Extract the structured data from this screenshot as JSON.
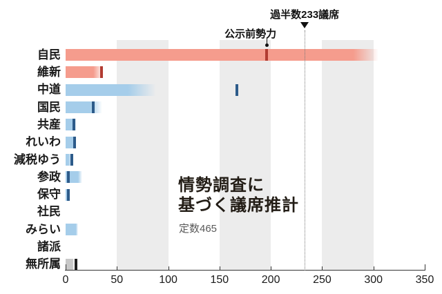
{
  "chart_data": {
    "type": "bar",
    "orientation": "horizontal",
    "title": "情勢調査に基づく議席推計",
    "title_lines": [
      "情勢調査に",
      "基づく議席推計"
    ],
    "subtitle": "定数465",
    "total_seats": 465,
    "xlim": [
      0,
      350
    ],
    "x_ticks": [
      0,
      50,
      100,
      150,
      200,
      250,
      300,
      350
    ],
    "shaded_bands": [
      [
        50,
        100
      ],
      [
        150,
        200
      ],
      [
        250,
        300
      ]
    ],
    "grid": "off",
    "majority": {
      "label": "過半数233議席",
      "seats": 233
    },
    "pre_strength": {
      "label": "公示前勢力",
      "party": "自民",
      "seats": 196
    },
    "colors": {
      "ruling_bar": "#f59c8d",
      "ruling_tick": "#b23c32",
      "opposition_bar": "#a5cdea",
      "opposition_tick": "#2d5b8a",
      "independent_bar": "#c8c8c8",
      "independent_tick": "#1f1f1f",
      "band": "#ececec"
    },
    "parties": [
      {
        "label": "自民",
        "projected": 280,
        "projected_max": 305,
        "pre_seats": 196,
        "bar_color": "#f59c8d",
        "tick_color": "#b23c32"
      },
      {
        "label": "維新",
        "projected": 27,
        "projected_max": 37,
        "pre_seats": 35,
        "bar_color": "#f59c8d",
        "tick_color": "#b23c32"
      },
      {
        "label": "中道",
        "projected": 61,
        "projected_max": 88,
        "pre_seats": 167,
        "bar_color": "#a5cdea",
        "tick_color": "#2d5b8a"
      },
      {
        "label": "国民",
        "projected": 24,
        "projected_max": 36,
        "pre_seats": 27,
        "bar_color": "#a5cdea",
        "tick_color": "#2d5b8a"
      },
      {
        "label": "共産",
        "projected": 9,
        "projected_max": 10,
        "pre_seats": 8,
        "bar_color": "#a5cdea",
        "tick_color": "#2d5b8a"
      },
      {
        "label": "れいわ",
        "projected": 7,
        "projected_max": 10,
        "pre_seats": 9,
        "bar_color": "#a5cdea",
        "tick_color": "#2d5b8a"
      },
      {
        "label": "減税ゆう",
        "projected": 3,
        "projected_max": 7,
        "pre_seats": 6,
        "bar_color": "#a5cdea",
        "tick_color": "#2d5b8a"
      },
      {
        "label": "参政",
        "projected": 12,
        "projected_max": 16,
        "pre_seats": 3,
        "bar_color": "#a5cdea",
        "tick_color": "#2d5b8a"
      },
      {
        "label": "保守",
        "projected": 2,
        "projected_max": 4,
        "pre_seats": 3,
        "bar_color": "#a5cdea",
        "tick_color": "#2d5b8a"
      },
      {
        "label": "社民",
        "projected": 0,
        "projected_max": 0,
        "pre_seats": null,
        "bar_color": "#a5cdea",
        "tick_color": "#2d5b8a"
      },
      {
        "label": "みらい",
        "projected": 10,
        "projected_max": 12,
        "pre_seats": null,
        "bar_color": "#a5cdea",
        "tick_color": "#2d5b8a"
      },
      {
        "label": "諸派",
        "projected": 0,
        "projected_max": 0,
        "pre_seats": null,
        "bar_color": "#a5cdea",
        "tick_color": "#2d5b8a"
      },
      {
        "label": "無所属",
        "projected": 7,
        "projected_max": 8,
        "pre_seats": 10,
        "bar_color": "#c8c8c8",
        "tick_color": "#1f1f1f"
      }
    ]
  }
}
